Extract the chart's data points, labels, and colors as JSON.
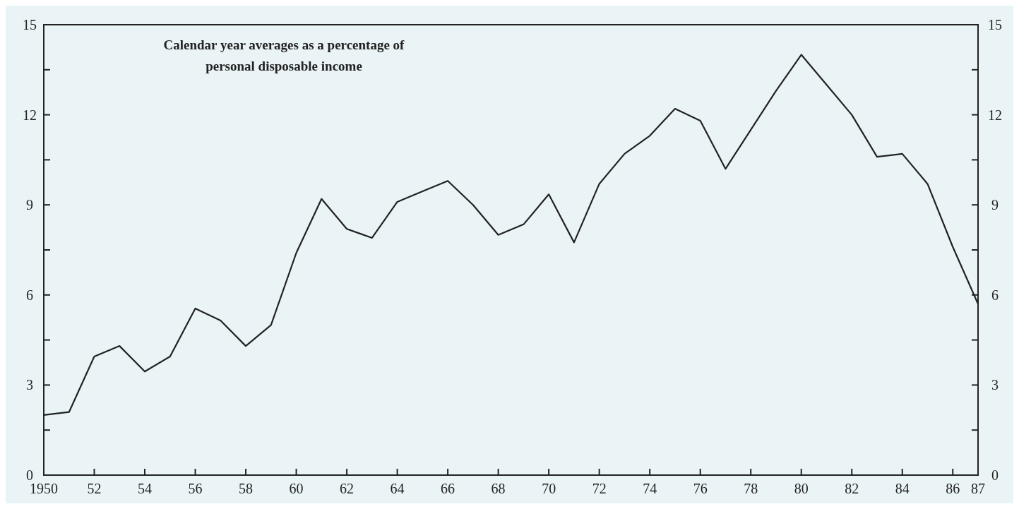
{
  "chart_data": {
    "type": "line",
    "title": "Calendar year averages as a percentage of\npersonal disposable income",
    "x": [
      1950,
      1951,
      1952,
      1953,
      1954,
      1955,
      1956,
      1957,
      1958,
      1959,
      1960,
      1961,
      1962,
      1963,
      1964,
      1965,
      1966,
      1967,
      1968,
      1969,
      1970,
      1971,
      1972,
      1973,
      1974,
      1975,
      1976,
      1977,
      1978,
      1979,
      1980,
      1981,
      1982,
      1983,
      1984,
      1985,
      1986,
      1987
    ],
    "series": [
      {
        "color": "#222222",
        "values": [
          2.0,
          2.1,
          3.95,
          4.3,
          3.45,
          3.95,
          5.55,
          5.15,
          4.3,
          5.0,
          7.4,
          9.2,
          8.2,
          7.9,
          9.1,
          9.45,
          9.8,
          9.0,
          8.0,
          8.35,
          9.35,
          7.75,
          9.7,
          10.7,
          11.3,
          12.2,
          11.8,
          10.2,
          11.5,
          12.8,
          14.0,
          13.0,
          12.0,
          10.6,
          10.7,
          9.7,
          7.6,
          5.7
        ]
      }
    ],
    "xlim": [
      1950,
      1987
    ],
    "xticks": [
      {
        "value": 1950,
        "label": "1950"
      },
      {
        "value": 1952,
        "label": "52"
      },
      {
        "value": 1954,
        "label": "54"
      },
      {
        "value": 1956,
        "label": "56"
      },
      {
        "value": 1958,
        "label": "58"
      },
      {
        "value": 1960,
        "label": "60"
      },
      {
        "value": 1962,
        "label": "62"
      },
      {
        "value": 1964,
        "label": "64"
      },
      {
        "value": 1966,
        "label": "66"
      },
      {
        "value": 1968,
        "label": "68"
      },
      {
        "value": 1970,
        "label": "70"
      },
      {
        "value": 1972,
        "label": "72"
      },
      {
        "value": 1974,
        "label": "74"
      },
      {
        "value": 1976,
        "label": "76"
      },
      {
        "value": 1978,
        "label": "78"
      },
      {
        "value": 1980,
        "label": "80"
      },
      {
        "value": 1982,
        "label": "82"
      },
      {
        "value": 1984,
        "label": "84"
      },
      {
        "value": 1986,
        "label": "86"
      },
      {
        "value": 1987,
        "label": "87"
      }
    ],
    "ylim": [
      0,
      15
    ],
    "yticks": [
      0,
      {
        "value": 1.5,
        "label": null
      },
      3,
      {
        "value": 4.5,
        "label": null
      },
      6,
      {
        "value": 7.5,
        "label": null
      },
      9,
      {
        "value": 10.5,
        "label": null
      },
      12,
      {
        "value": 13.5,
        "label": null
      },
      15
    ],
    "y2lim": [
      0,
      15
    ],
    "y2ticks": [
      0,
      {
        "value": 1.5,
        "label": null
      },
      3,
      {
        "value": 4.5,
        "label": null
      },
      6,
      {
        "value": 7.5,
        "label": null
      },
      9,
      {
        "value": 10.5,
        "label": null
      },
      12,
      {
        "value": 13.5,
        "label": null
      },
      15
    ],
    "grid": false,
    "line_style": "solid",
    "marker": "none"
  }
}
